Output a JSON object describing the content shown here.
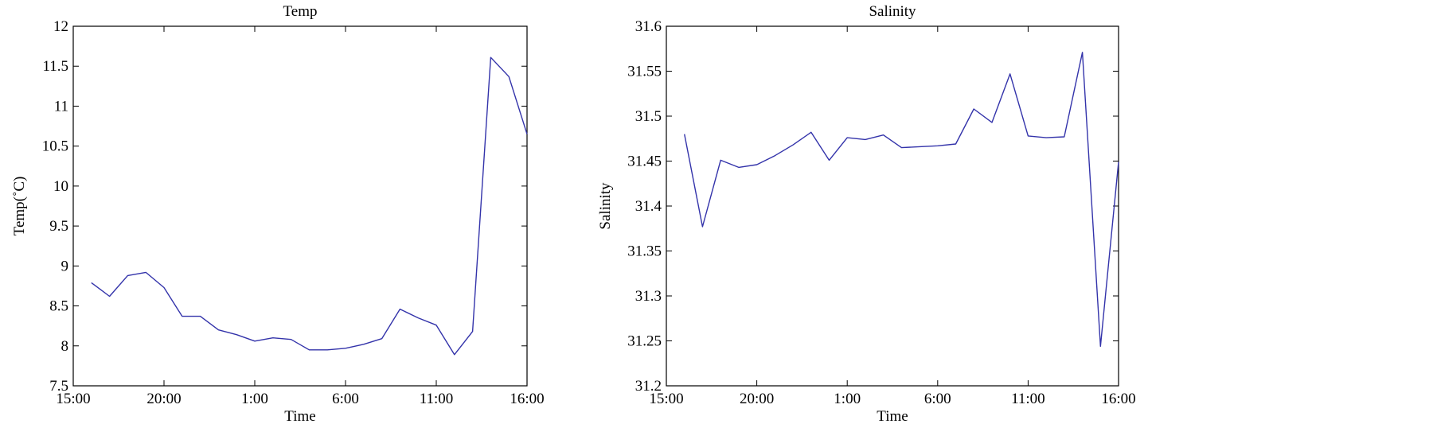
{
  "chart_data": [
    {
      "type": "line",
      "title": "Temp",
      "xlabel": "Time",
      "ylabel": "Temp(˚C)",
      "ylim": [
        7.5,
        12
      ],
      "yticks": [
        "7.5",
        "8",
        "8.5",
        "9",
        "9.5",
        "10",
        "10.5",
        "11",
        "11.5",
        "12"
      ],
      "xlim": [
        0,
        25
      ],
      "xticks": [
        "15:00",
        "20:00",
        "1:00",
        "6:00",
        "11:00",
        "16:00"
      ],
      "grid": false,
      "color": "#3333aa",
      "series": [
        {
          "x": [
            1,
            2,
            3,
            4,
            5,
            6,
            7,
            8,
            9,
            10,
            11,
            12,
            13,
            14,
            15,
            16,
            17,
            18,
            19,
            20,
            21,
            22,
            23,
            24,
            25
          ],
          "values": [
            8.79,
            8.62,
            8.88,
            8.92,
            8.73,
            8.37,
            8.37,
            8.2,
            8.14,
            8.06,
            8.1,
            8.08,
            7.95,
            7.95,
            7.97,
            8.02,
            8.09,
            8.46,
            8.35,
            8.26,
            7.89,
            8.18,
            11.61,
            11.37,
            10.65
          ]
        }
      ]
    },
    {
      "type": "line",
      "title": "Salinity",
      "xlabel": "Time",
      "ylabel": "Salinity",
      "ylim": [
        31.2,
        31.6
      ],
      "yticks": [
        "31.2",
        "31.25",
        "31.3",
        "31.35",
        "31.4",
        "31.45",
        "31.5",
        "31.55",
        "31.6"
      ],
      "xlim": [
        0,
        25
      ],
      "xticks": [
        "15:00",
        "20:00",
        "1:00",
        "6:00",
        "11:00",
        "16:00"
      ],
      "grid": false,
      "color": "#3333aa",
      "series": [
        {
          "x": [
            1,
            2,
            3,
            4,
            5,
            6,
            7,
            8,
            9,
            10,
            11,
            12,
            13,
            14,
            15,
            16,
            17,
            18,
            19,
            20,
            21,
            22,
            23,
            24,
            25
          ],
          "values": [
            31.48,
            31.377,
            31.451,
            31.443,
            31.446,
            31.456,
            31.468,
            31.482,
            31.451,
            31.476,
            31.474,
            31.479,
            31.465,
            31.466,
            31.467,
            31.469,
            31.508,
            31.493,
            31.547,
            31.478,
            31.476,
            31.477,
            31.571,
            31.244,
            31.449
          ]
        }
      ]
    }
  ]
}
